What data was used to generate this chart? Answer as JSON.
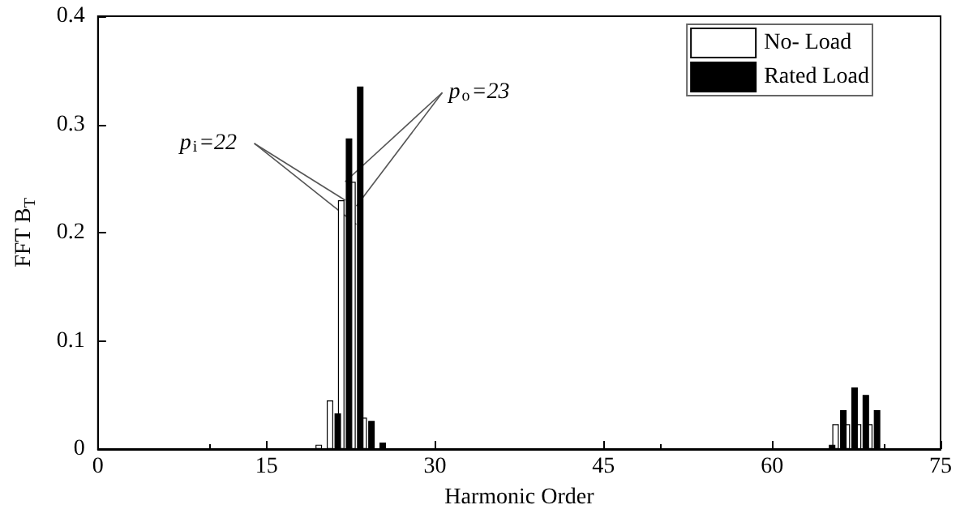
{
  "chart_data": {
    "type": "bar",
    "xlabel": "Harmonic Order",
    "ylabel": "FFT B$_{T}$",
    "x": [
      20,
      21,
      22,
      23,
      24,
      25,
      65,
      66,
      67,
      68,
      69
    ],
    "series": [
      {
        "name": "No- Load",
        "color": "#ffffff",
        "values": [
          0.004,
          0.045,
          0.23,
          0.247,
          0.029,
          null,
          null,
          0.023,
          0.023,
          0.023,
          0.023
        ]
      },
      {
        "name": "Rated Load",
        "color": "#000000",
        "values": [
          null,
          0.033,
          0.287,
          0.335,
          0.026,
          0.006,
          0.004,
          0.036,
          0.057,
          0.05,
          0.036
        ]
      }
    ],
    "xlim": [
      0,
      75
    ],
    "xticks": [
      0,
      15,
      30,
      45,
      60,
      75
    ],
    "ylim": [
      0,
      0.4
    ],
    "yticks": [
      0,
      0.1,
      0.2,
      0.3,
      0.4
    ],
    "annotations": [
      {
        "text": "p$_{i}$=22",
        "x": 22,
        "y": 0.23
      },
      {
        "text": "p$_{o}$=23",
        "x": 23,
        "y": 0.247
      }
    ],
    "legend": "top right",
    "grid": false
  }
}
